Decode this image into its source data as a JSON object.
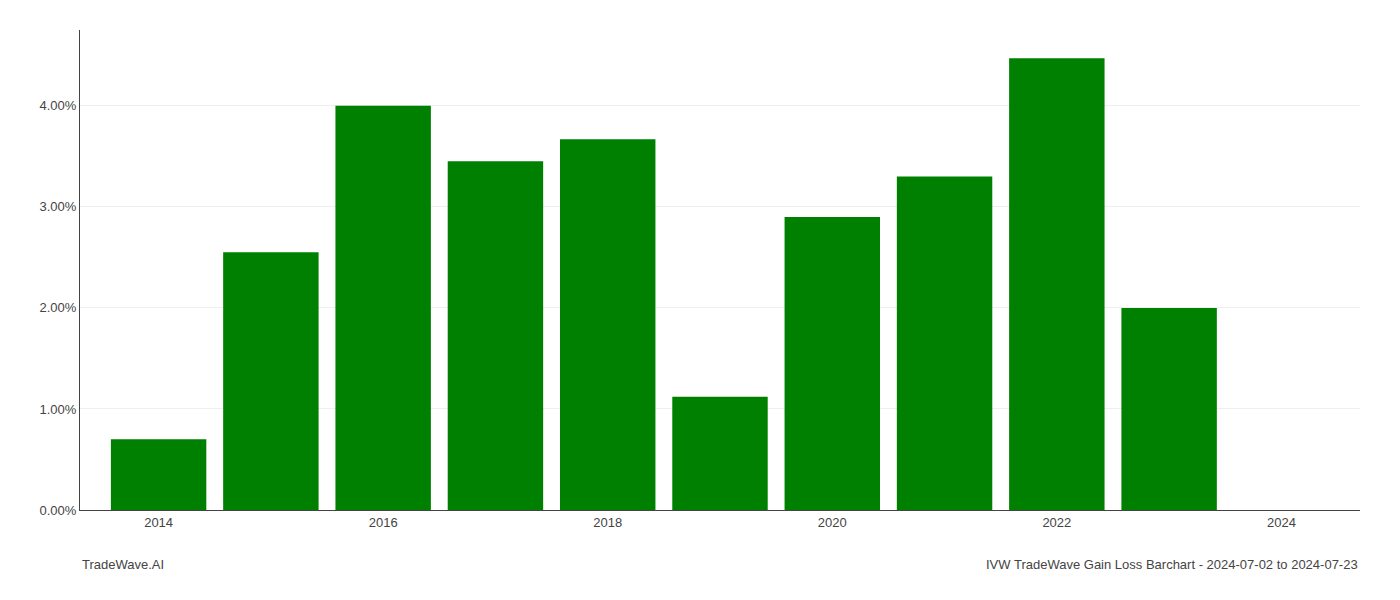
{
  "chart_data": {
    "type": "bar",
    "x": [
      2014,
      2015,
      2016,
      2017,
      2018,
      2019,
      2020,
      2021,
      2022,
      2023
    ],
    "values": [
      0.007,
      0.0255,
      0.04,
      0.0345,
      0.0367,
      0.0112,
      0.029,
      0.033,
      0.0447,
      0.02
    ],
    "color": "#008000",
    "xlim": [
      2013.3,
      2024.7
    ],
    "xticks": [
      2014,
      2016,
      2018,
      2020,
      2022,
      2024
    ],
    "ylim": [
      0.0,
      0.0475
    ],
    "yticks": [
      {
        "value": 0.0,
        "label": "0.00%"
      },
      {
        "value": 0.01,
        "label": "1.00%"
      },
      {
        "value": 0.02,
        "label": "2.00%"
      },
      {
        "value": 0.03,
        "label": "3.00%"
      },
      {
        "value": 0.04,
        "label": "4.00%"
      }
    ],
    "grid": "y",
    "annotations": [
      "TradeWave.AI",
      "IVW TradeWave Gain Loss Barchart - 2024-07-02 to 2024-07-23"
    ]
  }
}
